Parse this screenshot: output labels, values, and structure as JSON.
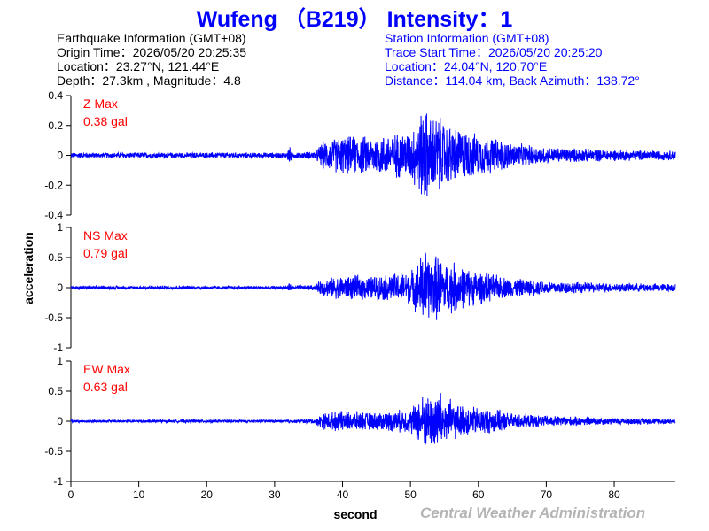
{
  "title": "Wufeng （B219） Intensity：1",
  "earthquake_info": {
    "heading": "Earthquake Information  (GMT+08)",
    "origin_time": "Origin Time：2026/05/20 20:25:35",
    "location": "Location：23.27°N, 121.44°E",
    "depth_magnitude": "Depth：27.3km , Magnitude：4.8"
  },
  "station_info": {
    "heading": "Station Information  (GMT+08)",
    "trace_start": "Trace Start Time：2026/05/20 20:25:20",
    "location": "Location：24.04°N, 120.70°E",
    "distance": "Distance：114.04 km, Back Azimuth：138.72°"
  },
  "credit": "Central Weather Administration",
  "colors": {
    "trace": "#0000ff",
    "max_label": "#ff0000",
    "title": "#0000ff",
    "station_text": "#0000ff",
    "credit": "#b4b4b4"
  },
  "chart_data": {
    "type": "line",
    "xlabel": "second",
    "ylabel": "acceleration",
    "xlim": [
      0,
      89
    ],
    "x_ticks": [
      0,
      10,
      20,
      30,
      40,
      50,
      60,
      70,
      80
    ],
    "panels": [
      {
        "component": "Z",
        "max_label": "Z Max",
        "max_value": "0.38 gal",
        "ylim": [
          -0.4,
          0.4
        ],
        "y_ticks": [
          0.4,
          0.2,
          0,
          -0.2,
          -0.4
        ],
        "y_tick_labels": [
          "0.4",
          "0.2",
          "0",
          "-0.2",
          "-0.4"
        ],
        "envelope": {
          "t": [
            0,
            31.8,
            32.1,
            32.6,
            36,
            37,
            40,
            45,
            50,
            51,
            52,
            53,
            54,
            55,
            56,
            57,
            60,
            63,
            65,
            70,
            75,
            80,
            89
          ],
          "amp": [
            0.02,
            0.02,
            0.08,
            0.02,
            0.03,
            0.1,
            0.14,
            0.14,
            0.18,
            0.26,
            0.36,
            0.28,
            0.3,
            0.24,
            0.22,
            0.2,
            0.15,
            0.12,
            0.09,
            0.06,
            0.05,
            0.04,
            0.035
          ]
        }
      },
      {
        "component": "NS",
        "max_label": "NS Max",
        "max_value": "0.79 gal",
        "ylim": [
          -1,
          1
        ],
        "y_ticks": [
          1,
          0.5,
          0,
          -0.5,
          -1
        ],
        "y_tick_labels": [
          "1",
          "0.5",
          "0",
          "-0.5",
          "-1"
        ],
        "envelope": {
          "t": [
            0,
            31.8,
            32.1,
            32.6,
            36,
            37,
            40,
            45,
            50,
            51,
            52,
            53,
            54,
            55,
            56,
            57,
            60,
            63,
            65,
            70,
            75,
            80,
            89
          ],
          "amp": [
            0.03,
            0.03,
            0.1,
            0.03,
            0.05,
            0.15,
            0.22,
            0.22,
            0.3,
            0.45,
            0.72,
            0.55,
            0.6,
            0.45,
            0.5,
            0.4,
            0.3,
            0.22,
            0.17,
            0.12,
            0.1,
            0.08,
            0.07
          ]
        }
      },
      {
        "component": "EW",
        "max_label": "EW Max",
        "max_value": "0.63 gal",
        "ylim": [
          -1,
          1
        ],
        "y_ticks": [
          1,
          0.5,
          0,
          -0.5,
          -1
        ],
        "y_tick_labels": [
          "1",
          "0.5",
          "0",
          "-0.5",
          "-1"
        ],
        "envelope": {
          "t": [
            0,
            31.8,
            32.1,
            32.6,
            36,
            37,
            40,
            45,
            50,
            51,
            52,
            53,
            54,
            55,
            56,
            57,
            60,
            63,
            65,
            70,
            75,
            80,
            89
          ],
          "amp": [
            0.025,
            0.025,
            0.04,
            0.025,
            0.05,
            0.15,
            0.18,
            0.16,
            0.22,
            0.38,
            0.5,
            0.45,
            0.62,
            0.42,
            0.38,
            0.3,
            0.25,
            0.2,
            0.14,
            0.1,
            0.08,
            0.06,
            0.05
          ]
        }
      }
    ]
  }
}
